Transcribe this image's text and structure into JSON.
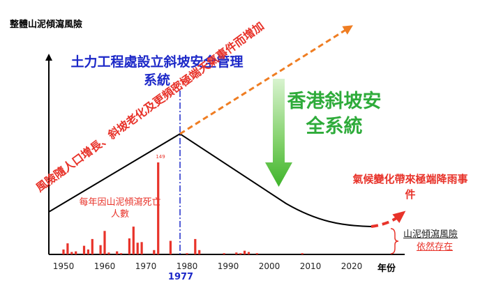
{
  "y_axis_label": "整體山泥傾瀉風險",
  "x_axis_label": "年份",
  "x_ticks": [
    "1950",
    "1960",
    "1970",
    "1980",
    "1990",
    "2000",
    "2010",
    "2020"
  ],
  "marked_year": "1977",
  "geo_system_label": "土力工程處設立斜坡安全管理系統",
  "hk_system_label": "香港斜坡安全系統",
  "rising_risk_label": "風險隨人口增長、斜坡老化及更頻密極端天氣事件而增加",
  "climate_label": "氣候變化帶來極端降雨事件",
  "deaths_label": "每年因山泥傾瀉死亡人數",
  "deaths_peak_label": "149",
  "remaining_risk_line1": "山泥傾瀉風險",
  "remaining_risk_line2": "依然存在",
  "colors": {
    "red": "#e8332a",
    "blue": "#1c28c8",
    "green": "#2eab3a",
    "orange": "#ef7d22"
  },
  "chart_data": {
    "type": "bar",
    "series": [
      {
        "name": "每年因山泥傾瀉死亡人數",
        "x": [
          1950,
          1951,
          1952,
          1953,
          1955,
          1956,
          1957,
          1959,
          1960,
          1961,
          1963,
          1964,
          1966,
          1967,
          1968,
          1969,
          1972,
          1973,
          1976,
          1980,
          1982,
          1983,
          1989,
          1992,
          1993,
          1994,
          1995,
          1997,
          2008
        ],
        "values": [
          8,
          18,
          4,
          5,
          14,
          8,
          25,
          15,
          38,
          3,
          5,
          2,
          26,
          45,
          19,
          20,
          7,
          149,
          22,
          2,
          25,
          7,
          2,
          3,
          2,
          6,
          4,
          2,
          2
        ]
      }
    ],
    "xlim": [
      1947,
      2035
    ]
  }
}
